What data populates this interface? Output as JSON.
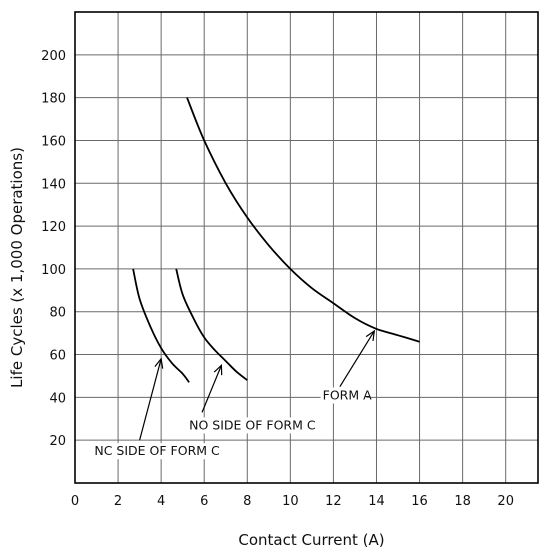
{
  "chart_data": {
    "type": "line",
    "xlabel": "Contact Current (A)",
    "ylabel": "Life Cycles (x 1,000 Operations)",
    "xlim": [
      0,
      21.5
    ],
    "ylim": [
      0,
      220
    ],
    "x_ticks": [
      0,
      2,
      4,
      6,
      8,
      10,
      12,
      14,
      16,
      18,
      20
    ],
    "y_ticks": [
      20,
      40,
      60,
      80,
      100,
      120,
      140,
      160,
      180,
      200
    ],
    "grid": true,
    "series": [
      {
        "name": "FORM A",
        "points": [
          [
            5.2,
            180
          ],
          [
            6,
            160
          ],
          [
            7,
            140
          ],
          [
            8,
            124
          ],
          [
            9,
            111
          ],
          [
            10,
            100
          ],
          [
            11,
            91
          ],
          [
            12,
            84
          ],
          [
            13,
            77
          ],
          [
            14,
            72
          ],
          [
            15,
            69
          ],
          [
            16,
            66
          ]
        ]
      },
      {
        "name": "NO SIDE OF FORM C",
        "points": [
          [
            4.7,
            100
          ],
          [
            5,
            88
          ],
          [
            5.5,
            77
          ],
          [
            6,
            68
          ],
          [
            6.5,
            62
          ],
          [
            7,
            57
          ],
          [
            7.5,
            52
          ],
          [
            8,
            48
          ]
        ]
      },
      {
        "name": "NC SIDE OF FORM C",
        "points": [
          [
            2.7,
            100
          ],
          [
            3,
            86
          ],
          [
            3.5,
            73
          ],
          [
            4,
            63
          ],
          [
            4.5,
            56
          ],
          [
            5,
            51
          ],
          [
            5.3,
            47
          ]
        ]
      }
    ],
    "annotations": [
      {
        "text": "FORM A",
        "label_at": [
          11.5,
          39
        ],
        "arrow_from": [
          12.3,
          45
        ],
        "arrow_to": [
          13.9,
          71
        ]
      },
      {
        "text": "NO SIDE OF FORM C",
        "label_at": [
          5.3,
          25
        ],
        "arrow_from": [
          5.9,
          33
        ],
        "arrow_to": [
          6.8,
          55
        ]
      },
      {
        "text": "NC SIDE OF FORM C",
        "label_at": [
          0.9,
          13
        ],
        "arrow_from": [
          3.0,
          20
        ],
        "arrow_to": [
          4.0,
          58
        ]
      }
    ]
  }
}
